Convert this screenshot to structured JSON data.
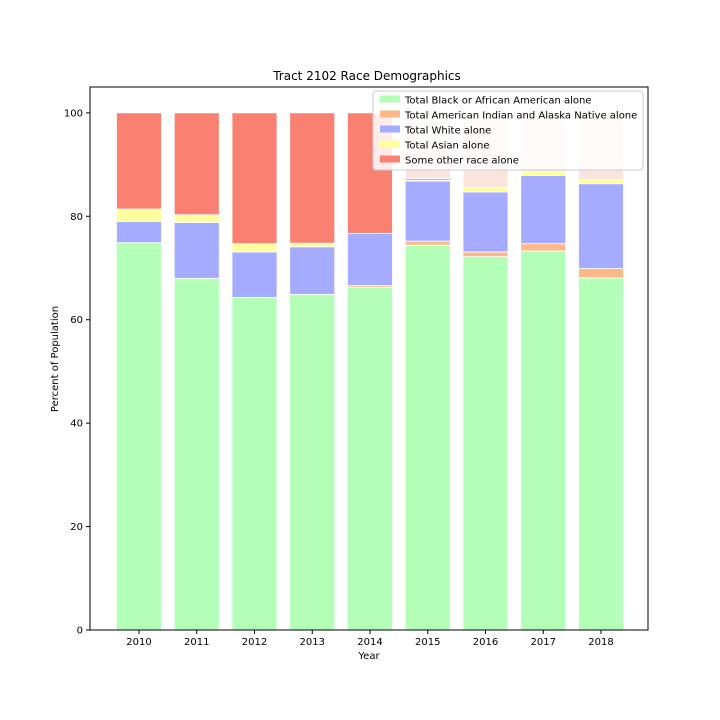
{
  "chart_data": {
    "type": "bar",
    "stacked": true,
    "title": "Tract 2102 Race Demographics",
    "xlabel": "Year",
    "ylabel": "Percent of Population",
    "ylim": [
      0,
      105
    ],
    "yticks": [
      0,
      20,
      40,
      60,
      80,
      100
    ],
    "categories": [
      "2010",
      "2011",
      "2012",
      "2013",
      "2014",
      "2015",
      "2016",
      "2017",
      "2018"
    ],
    "legend_position": "top-right",
    "series": [
      {
        "name": "Total Black or African American alone",
        "color": "#b3ffb8",
        "values": [
          74.9,
          68.0,
          64.3,
          64.9,
          66.3,
          74.4,
          72.2,
          73.3,
          68.1
        ]
      },
      {
        "name": "Total American Indian and Alaska Native alone",
        "color": "#fbb889",
        "values": [
          0.0,
          0.0,
          0.0,
          0.0,
          0.3,
          0.8,
          0.9,
          1.4,
          1.8
        ]
      },
      {
        "name": "Total White alone",
        "color": "#a5acff",
        "values": [
          4.1,
          10.8,
          8.8,
          9.2,
          10.1,
          11.6,
          11.6,
          13.2,
          16.4
        ]
      },
      {
        "name": "Total Asian alone",
        "color": "#ffff9e",
        "values": [
          2.4,
          1.5,
          1.6,
          0.7,
          0.0,
          0.2,
          0.9,
          0.8,
          0.8
        ]
      },
      {
        "name": "Some other race alone",
        "color": "#fa8072",
        "values": [
          18.6,
          19.7,
          25.3,
          25.2,
          23.3,
          0.3,
          0.0,
          0.0,
          0.0
        ]
      },
      {
        "name": "",
        "color": "#fce4de",
        "values": [
          0.0,
          0.0,
          0.0,
          0.0,
          0.0,
          0.0,
          0.0,
          0.0,
          0.0
        ]
      }
    ],
    "hidden_remainders": [
      0.0,
      0.0,
      0.0,
      0.0,
      0.0,
      12.7,
      14.4,
      11.3,
      12.9
    ]
  }
}
